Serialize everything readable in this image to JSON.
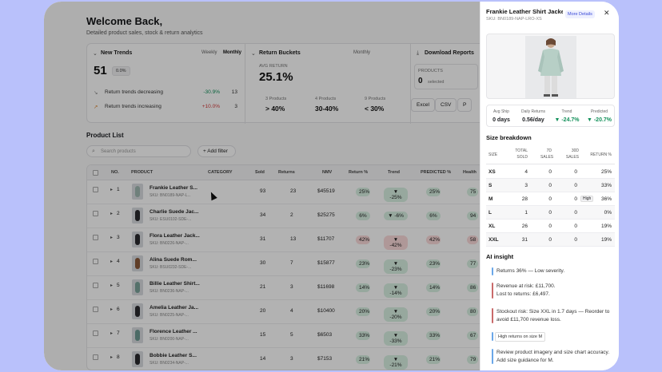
{
  "header": {
    "title": "Welcome Back,",
    "subtitle": "Detailed product sales, stock & return analytics"
  },
  "cards": {
    "new_trends": {
      "title": "New Trends",
      "toggle_weekly": "Weekly",
      "toggle_monthly": "Monthly",
      "value": "51",
      "badge": "0.0%",
      "rows": [
        {
          "label": "Return trends decreasing",
          "pct": "-30.9%",
          "count": "13"
        },
        {
          "label": "Return trends increasing",
          "pct": "+10.0%",
          "count": "3"
        }
      ]
    },
    "return_buckets": {
      "title": "Return Buckets",
      "toggle": "Monthly",
      "avg_label": "AVG RETURN",
      "avg_value": "25.1%",
      "buckets": [
        {
          "count": "3 Products",
          "range": "> 40%"
        },
        {
          "count": "4 Products",
          "range": "30-40%"
        },
        {
          "count": "9 Products",
          "range": "< 30%"
        }
      ]
    },
    "download": {
      "title": "Download Reports",
      "products_label": "PRODUCTS",
      "products_value": "0",
      "selected": "selected",
      "excel": "Excel",
      "csv": "CSV",
      "pdf": "P"
    }
  },
  "product_list": {
    "title": "Product List",
    "search_placeholder": "Search products",
    "add_filter": "+ Add filter",
    "columns": [
      "NO.",
      "PRODUCT",
      "CATEGORY",
      "Sold",
      "Returns",
      "NMV",
      "Return %",
      "Trend",
      "PREDICTED %",
      "Health"
    ],
    "rows": [
      {
        "no": "1",
        "name": "Frankie Leather S...",
        "sku": "SKU: BN0189-NAP-L...",
        "sold": "93",
        "returns": "23",
        "nmv": "$45519",
        "ret": "25%",
        "trend": "▼ -25%",
        "pred": "25%",
        "health": "75",
        "level": "ok",
        "thumb": "#9fb8b0"
      },
      {
        "no": "2",
        "name": "Charlie Suede Jac...",
        "sku": "SKU: ESU0102-SDE-...",
        "sold": "34",
        "returns": "2",
        "nmv": "$25275",
        "ret": "6%",
        "trend": "▼ -6%",
        "pred": "6%",
        "health": "94",
        "level": "ok",
        "thumb": "#2a2a2e"
      },
      {
        "no": "3",
        "name": "Flora Leather Jack...",
        "sku": "SKU: BN0226-NAP-...",
        "sold": "31",
        "returns": "13",
        "nmv": "$11707",
        "ret": "42%",
        "trend": "▼ -42%",
        "pred": "42%",
        "health": "58",
        "level": "bad",
        "thumb": "#2a2a2e"
      },
      {
        "no": "4",
        "name": "Alina Suede Rom...",
        "sku": "SKU: BSU0232-SDE-...",
        "sold": "30",
        "returns": "7",
        "nmv": "$15877",
        "ret": "23%",
        "trend": "▼ -23%",
        "pred": "23%",
        "health": "77",
        "level": "ok",
        "thumb": "#8a5a3a"
      },
      {
        "no": "5",
        "name": "Billie Leather Shirt...",
        "sku": "SKU: BN0236-NAP-...",
        "sold": "21",
        "returns": "3",
        "nmv": "$11698",
        "ret": "14%",
        "trend": "▼ -14%",
        "pred": "14%",
        "health": "86",
        "level": "ok",
        "thumb": "#7aa39a"
      },
      {
        "no": "6",
        "name": "Amelia Leather Ja...",
        "sku": "SKU: BN0225-NAP-...",
        "sold": "20",
        "returns": "4",
        "nmv": "$10400",
        "ret": "20%",
        "trend": "▼ -20%",
        "pred": "20%",
        "health": "80",
        "level": "ok",
        "thumb": "#2a2a2e"
      },
      {
        "no": "7",
        "name": "Florence Leather ...",
        "sku": "SKU: BN0200-NAP-...",
        "sold": "15",
        "returns": "5",
        "nmv": "$6503",
        "ret": "33%",
        "trend": "▼ -33%",
        "pred": "33%",
        "health": "67",
        "level": "ok",
        "thumb": "#6e9a93"
      },
      {
        "no": "8",
        "name": "Bobbie Leather S...",
        "sku": "SKU: BN0234-NAP-...",
        "sold": "14",
        "returns": "3",
        "nmv": "$7153",
        "ret": "21%",
        "trend": "▼ -21%",
        "pred": "21%",
        "health": "79",
        "level": "ok",
        "thumb": "#2a2a2e"
      }
    ]
  },
  "panel": {
    "title": "Frankie Leather Shirt Jacket",
    "sku": "SKU: BN0189-NAP-LRO-XS",
    "more": "More Details",
    "stats": [
      {
        "label": "Avg Ship",
        "value": "0 days",
        "color": "#111"
      },
      {
        "label": "Daily Returns",
        "value": "0.56/day",
        "color": "#111"
      },
      {
        "label": "Trend",
        "value": "▼ -24.7%",
        "color": "#12905a"
      },
      {
        "label": "Predicted",
        "value": "▼ -20.7%",
        "color": "#12905a"
      }
    ],
    "size_title": "Size breakdown",
    "size_cols": [
      "SIZE",
      "TOTAL SOLD",
      "7D SALES",
      "30D SALES",
      "RETURN %"
    ],
    "sizes": [
      {
        "size": "XS",
        "total": "4",
        "d7": "0",
        "d30": "0",
        "ret": "25%",
        "flag": ""
      },
      {
        "size": "S",
        "total": "3",
        "d7": "0",
        "d30": "0",
        "ret": "33%",
        "flag": ""
      },
      {
        "size": "M",
        "total": "28",
        "d7": "0",
        "d30": "0",
        "ret": "36%",
        "flag": "High"
      },
      {
        "size": "L",
        "total": "1",
        "d7": "0",
        "d30": "0",
        "ret": "0%",
        "flag": ""
      },
      {
        "size": "XL",
        "total": "26",
        "d7": "0",
        "d30": "0",
        "ret": "19%",
        "flag": ""
      },
      {
        "size": "XXL",
        "total": "31",
        "d7": "0",
        "d30": "0",
        "ret": "19%",
        "flag": ""
      }
    ],
    "ai_title": "AI insight",
    "insights": {
      "i1": "Returns 36% — Low severity.",
      "i2a": "Revenue at risk: £11,700.",
      "i2b": "Lost to returns: £6,497.",
      "i3": "Stockout risk: Size XXL in 1.7 days — Reorder to avoid £11,700 revenue loss.",
      "chip": "High returns on size M",
      "i4": "Review product imagery and size chart accuracy.",
      "i4b": "Add size guidance for M."
    }
  }
}
